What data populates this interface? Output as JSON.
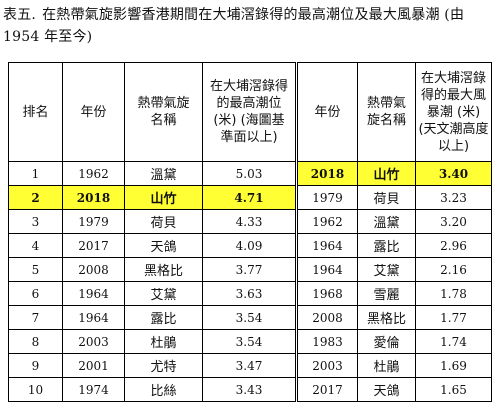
{
  "caption": {
    "label": "表五.",
    "text": "在熱帶氣旋影響香港期間在大埔滘錄得的最高潮位及最大風暴潮 (由 1954 年至今)"
  },
  "highlight_color": "#ffff33",
  "headers": {
    "rank": "排名",
    "year": "年份",
    "cyclone": "熱帶氣旋名稱",
    "tide": "在大埔滘錄得的最高潮位 (米) (海圖基準面以上)",
    "year2": "年份",
    "cyclone2": "熱帶氣旋名稱",
    "surge": "在大埔滘錄得的最大風暴潮 (米) (天文潮高度以上)"
  },
  "tide_rows": [
    {
      "rank": "1",
      "year": "1962",
      "name": "溫黛",
      "value": "5.03"
    },
    {
      "rank": "2",
      "year": "2018",
      "name": "山竹",
      "value": "4.71",
      "highlight": true
    },
    {
      "rank": "3",
      "year": "1979",
      "name": "荷貝",
      "value": "4.33"
    },
    {
      "rank": "4",
      "year": "2017",
      "name": "天鴿",
      "value": "4.09"
    },
    {
      "rank": "5",
      "year": "2008",
      "name": "黑格比",
      "value": "3.77"
    },
    {
      "rank": "6",
      "year": "1964",
      "name": "艾黛",
      "value": "3.63"
    },
    {
      "rank": "7",
      "year": "1964",
      "name": "露比",
      "value": "3.54"
    },
    {
      "rank": "8",
      "year": "2003",
      "name": "杜鵑",
      "value": "3.54"
    },
    {
      "rank": "9",
      "year": "2001",
      "name": "尤特",
      "value": "3.47"
    },
    {
      "rank": "10",
      "year": "1974",
      "name": "比絲",
      "value": "3.43"
    }
  ],
  "surge_rows": [
    {
      "year": "2018",
      "name": "山竹",
      "value": "3.40",
      "highlight": true
    },
    {
      "year": "1979",
      "name": "荷貝",
      "value": "3.23"
    },
    {
      "year": "1962",
      "name": "溫黛",
      "value": "3.20"
    },
    {
      "year": "1964",
      "name": "露比",
      "value": "2.96"
    },
    {
      "year": "1964",
      "name": "艾黛",
      "value": "2.16"
    },
    {
      "year": "1968",
      "name": "雪麗",
      "value": "1.78"
    },
    {
      "year": "2008",
      "name": "黑格比",
      "value": "1.77"
    },
    {
      "year": "1983",
      "name": "愛倫",
      "value": "1.74"
    },
    {
      "year": "2003",
      "name": "杜鵑",
      "value": "1.69"
    },
    {
      "year": "2017",
      "name": "天鴿",
      "value": "1.65"
    }
  ]
}
